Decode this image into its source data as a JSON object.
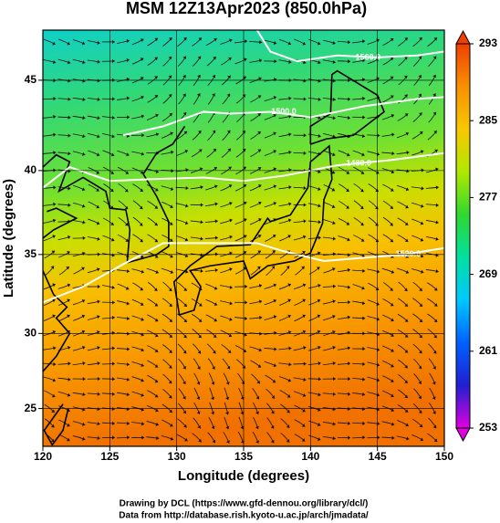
{
  "chart_data": {
    "type": "map",
    "title": "MSM 12Z13Apr2023 (850.0hPa)",
    "x_label": "Longitude (degrees)",
    "y_label": "Latitude  (degrees)",
    "xlim": [
      120,
      150
    ],
    "ylim": [
      22.4,
      47.6
    ],
    "xticks": [
      120,
      125,
      130,
      135,
      140,
      145,
      150
    ],
    "yticks": [
      25,
      30,
      35,
      40,
      45
    ],
    "projection": "mercator",
    "grid": true,
    "contour_labels": [
      "1560.0",
      "1500.0",
      "1480.0",
      "1520.0"
    ],
    "colorbar": {
      "lim": [
        253,
        293
      ],
      "ticks": [
        253,
        261,
        269,
        277,
        285,
        293
      ],
      "colors": [
        "#e000e0",
        "#2020d0",
        "#0060ff",
        "#00c8ff",
        "#00e0a0",
        "#30d830",
        "#b0e800",
        "#f8c800",
        "#f89000",
        "#f04000"
      ]
    },
    "footer": [
      "Drawing by DCL (https://www.gfd-dennou.org/library/dcl/)",
      "Data from http://database.rish.kyoto-u.ac.jp/arch/jmadata/"
    ]
  }
}
